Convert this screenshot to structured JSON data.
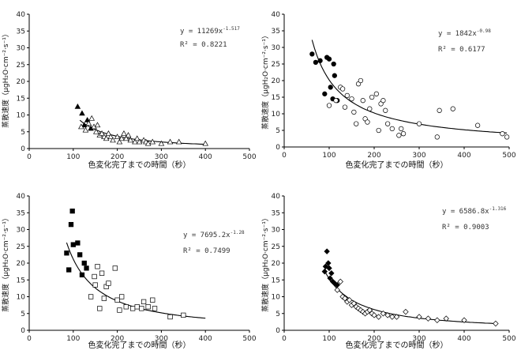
{
  "chart_data": [
    {
      "type": "scatter",
      "xlabel": "色変化完了までの時間（秒）",
      "ylabel": "蒸散速度（μgH₂O·cm⁻²·s⁻¹）",
      "xlim": [
        0,
        500
      ],
      "ylim": [
        0,
        40
      ],
      "xticks": [
        0,
        100,
        200,
        300,
        400,
        500
      ],
      "yticks": [
        0,
        5,
        10,
        15,
        20,
        25,
        30,
        35,
        40
      ],
      "equation": "y = 11269x",
      "exponent": "-1.517",
      "r2": "R² = 0.8221",
      "fit": {
        "a": 11269,
        "b": -1.517,
        "x_range": [
          115,
          400
        ]
      },
      "series": [
        {
          "marker": "triangle-filled",
          "x": [
            110,
            120,
            125,
            132,
            140
          ],
          "y": [
            12.5,
            10.5,
            7.0,
            8.5,
            6.0
          ]
        },
        {
          "marker": "triangle-open",
          "x": [
            118,
            128,
            135,
            142,
            147,
            152,
            155,
            160,
            165,
            170,
            175,
            180,
            185,
            190,
            200,
            205,
            210,
            215,
            220,
            225,
            230,
            240,
            245,
            250,
            260,
            265,
            270,
            280,
            300,
            320,
            340,
            400
          ],
          "y": [
            6.5,
            5.5,
            7.5,
            9.0,
            6.5,
            5.0,
            7.0,
            4.0,
            4.5,
            3.5,
            3.0,
            4.5,
            3.5,
            2.5,
            3.5,
            2.0,
            3.0,
            4.5,
            3.0,
            4.0,
            2.5,
            2.0,
            3.0,
            2.0,
            2.5,
            2.0,
            1.5,
            2.0,
            1.5,
            2.0,
            2.0,
            1.5
          ]
        }
      ]
    },
    {
      "type": "scatter",
      "xlabel": "色変化完了までの時間（秒）",
      "ylabel": "蒸散速度（μgH₂O·cm⁻²·s⁻¹）",
      "xlim": [
        0,
        500
      ],
      "ylim": [
        0,
        40
      ],
      "xticks": [
        0,
        100,
        200,
        300,
        400,
        500
      ],
      "yticks": [
        0,
        5,
        10,
        15,
        20,
        25,
        30,
        35,
        40
      ],
      "equation": "y = 1842x",
      "exponent": "-0.98",
      "r2": "R² = 0.6177",
      "fit": {
        "a": 1842,
        "b": -0.98,
        "x_range": [
          62,
          495
        ]
      },
      "series": [
        {
          "marker": "circle-filled",
          "x": [
            62,
            70,
            80,
            90,
            95,
            100,
            103,
            108,
            110,
            112,
            118
          ],
          "y": [
            28.0,
            25.5,
            26.0,
            16.0,
            27.0,
            26.5,
            18.0,
            14.5,
            25.0,
            21.5,
            14.0
          ]
        },
        {
          "marker": "circle-open",
          "x": [
            100,
            115,
            125,
            130,
            135,
            140,
            150,
            155,
            160,
            165,
            170,
            175,
            180,
            185,
            190,
            195,
            205,
            210,
            215,
            220,
            225,
            230,
            240,
            255,
            260,
            265,
            300,
            340,
            345,
            375,
            430,
            485,
            495
          ],
          "y": [
            12.5,
            14.0,
            18.0,
            17.5,
            12.0,
            15.5,
            14.5,
            10.5,
            7.0,
            19.0,
            20.0,
            14.0,
            8.5,
            7.5,
            11.5,
            15.0,
            16.0,
            5.0,
            13.0,
            14.0,
            11.0,
            7.0,
            5.5,
            3.5,
            5.5,
            4.0,
            7.0,
            3.0,
            11.0,
            11.5,
            6.5,
            4.0,
            3.0
          ]
        }
      ]
    },
    {
      "type": "scatter",
      "xlabel": "色変化完了までの時間（秒）",
      "ylabel": "蒸散速度（μgH₂O·cm⁻²·s⁻¹）",
      "xlim": [
        0,
        500
      ],
      "ylim": [
        0,
        40
      ],
      "xticks": [
        0,
        100,
        200,
        300,
        400,
        500
      ],
      "yticks": [
        0,
        5,
        10,
        15,
        20,
        25,
        30,
        35,
        40
      ],
      "equation": "y = 7695.2x",
      "exponent": "-1.28",
      "r2": "R² = 0.7499",
      "fit": {
        "a": 7695.2,
        "b": -1.28,
        "x_range": [
          85,
          400
        ]
      },
      "series": [
        {
          "marker": "square-filled",
          "x": [
            85,
            90,
            95,
            98,
            100,
            110,
            115,
            120,
            125,
            130
          ],
          "y": [
            23.0,
            18.0,
            31.5,
            35.5,
            25.5,
            26.0,
            22.5,
            16.5,
            20.0,
            18.5
          ]
        },
        {
          "marker": "square-open",
          "x": [
            140,
            148,
            150,
            155,
            160,
            165,
            170,
            175,
            180,
            195,
            200,
            205,
            210,
            220,
            235,
            245,
            255,
            260,
            270,
            280,
            285,
            320,
            350
          ],
          "y": [
            10.0,
            16.0,
            13.5,
            19.0,
            6.5,
            17.0,
            9.5,
            13.0,
            14.0,
            18.5,
            9.0,
            6.0,
            10.0,
            7.0,
            6.5,
            7.0,
            6.5,
            8.5,
            7.0,
            9.0,
            6.5,
            4.0,
            4.5
          ]
        }
      ]
    },
    {
      "type": "scatter",
      "xlabel": "色変化完了までの時間（秒）",
      "ylabel": "蒸散速度（μgH₂O·cm⁻²·s⁻¹）",
      "xlim": [
        0,
        500
      ],
      "ylim": [
        0,
        40
      ],
      "xticks": [
        0,
        100,
        200,
        300,
        400,
        500
      ],
      "yticks": [
        0,
        5,
        10,
        15,
        20,
        25,
        30,
        35,
        40
      ],
      "equation": "y = 6586.8x",
      "exponent": "-1.316",
      "r2": "R² = 0.9003",
      "fit": {
        "a": 6586.8,
        "b": -1.316,
        "x_range": [
          90,
          470
        ]
      },
      "series": [
        {
          "marker": "diamond-filled",
          "x": [
            90,
            92,
            95,
            98,
            100,
            102,
            105,
            108,
            112,
            118
          ],
          "y": [
            17.5,
            19.0,
            23.5,
            20.0,
            18.5,
            15.5,
            17.0,
            14.5,
            14.0,
            13.5
          ]
        },
        {
          "marker": "diamond-open",
          "x": [
            118,
            125,
            130,
            135,
            140,
            145,
            150,
            155,
            160,
            165,
            170,
            175,
            180,
            185,
            190,
            195,
            200,
            210,
            220,
            230,
            240,
            250,
            270,
            300,
            320,
            340,
            360,
            400,
            470
          ],
          "y": [
            12.0,
            14.5,
            10.0,
            9.5,
            8.5,
            9.0,
            7.5,
            8.0,
            7.0,
            6.5,
            6.0,
            5.5,
            5.0,
            5.5,
            6.0,
            5.0,
            4.5,
            4.0,
            5.0,
            4.5,
            4.0,
            4.0,
            5.5,
            4.0,
            3.5,
            3.0,
            3.5,
            3.0,
            2.0
          ]
        }
      ]
    }
  ]
}
